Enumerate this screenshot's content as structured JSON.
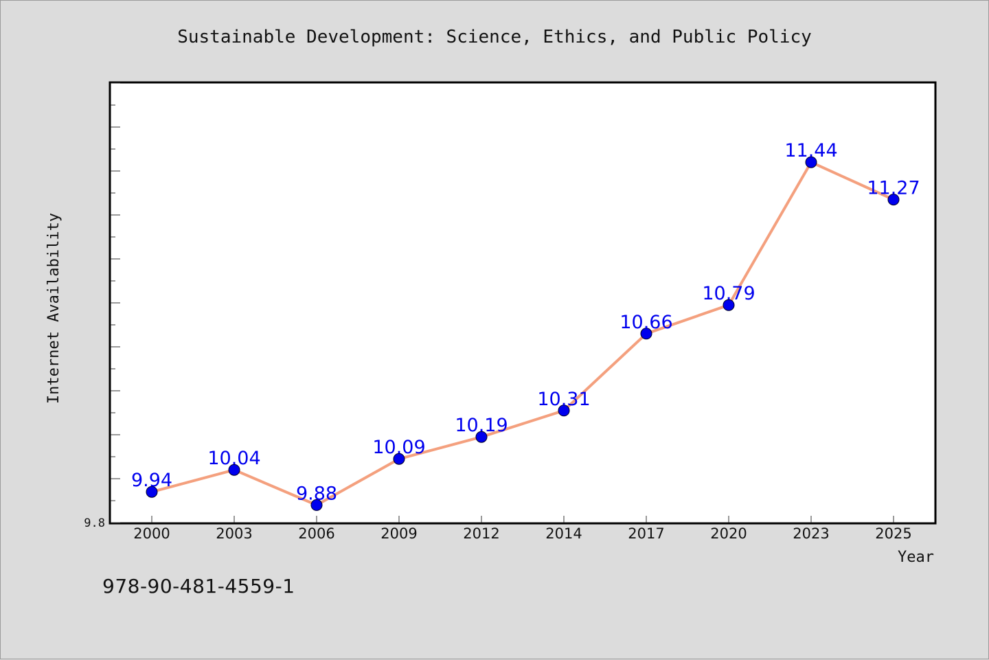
{
  "isbn": "978-90-481-4559-1",
  "chart_data": {
    "type": "line",
    "title": "Sustainable Development: Science, Ethics, and Public Policy",
    "xlabel": "Year",
    "ylabel": "Internet Availability",
    "categories": [
      "2000",
      "2003",
      "2006",
      "2009",
      "2012",
      "2014",
      "2017",
      "2020",
      "2023",
      "2025"
    ],
    "series": [
      {
        "values": [
          9.94,
          10.04,
          9.88,
          10.09,
          10.19,
          10.31,
          10.66,
          10.79,
          11.44,
          11.27
        ],
        "line_color": "#f4a07e",
        "marker_color": "#0000ee"
      }
    ],
    "data_labels": [
      "9.94",
      "10.04",
      "9.88",
      "10.09",
      "10.19",
      "10.31",
      "10.66",
      "10.79",
      "11.44",
      "11.27"
    ],
    "ylim": [
      9.8,
      11.8
    ],
    "y_tick_labels": [
      "9.8"
    ],
    "grid": false,
    "label_color": "#0000ee"
  }
}
